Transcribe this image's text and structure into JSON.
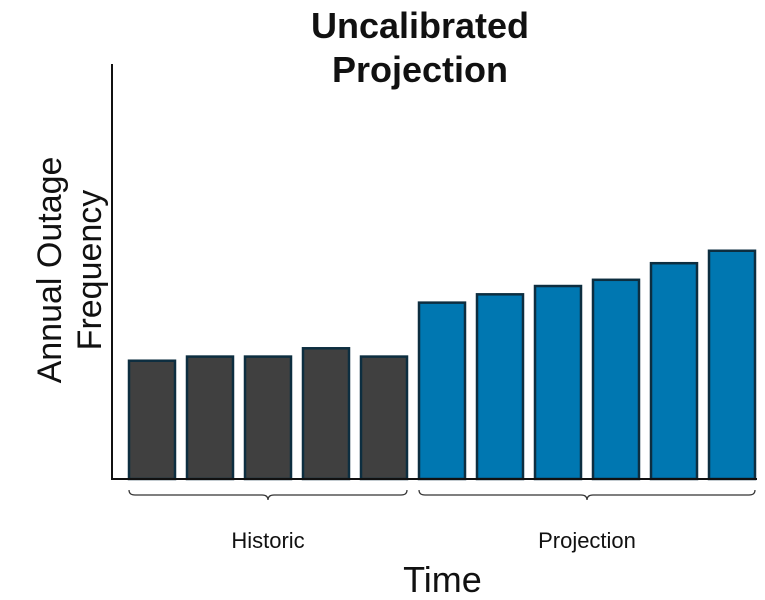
{
  "chart_data": {
    "type": "bar",
    "title_lines": [
      "Uncalibrated",
      "Projection"
    ],
    "xlabel": "Time",
    "ylabel_lines": [
      "Annual Outage",
      "Frequency"
    ],
    "ylim": [
      0,
      100
    ],
    "categories": [
      "",
      "",
      "",
      "",
      "",
      "",
      "",
      "",
      "",
      "",
      ""
    ],
    "series": [
      {
        "color": "#404040",
        "values": [
          28.5,
          29.5,
          29.5,
          31.5,
          29.5,
          null,
          null,
          null,
          null,
          null,
          null
        ]
      },
      {
        "color": "#0077b1",
        "values": [
          null,
          null,
          null,
          null,
          null,
          42.5,
          44.5,
          46.5,
          48.0,
          52.0,
          55.0
        ]
      }
    ],
    "bar_outline_color": "#0d2e40",
    "groups": [
      {
        "label": "Historic",
        "start": 0,
        "end": 4
      },
      {
        "label": "Projection",
        "start": 5,
        "end": 10
      }
    ],
    "grid": false,
    "legend": "none"
  }
}
